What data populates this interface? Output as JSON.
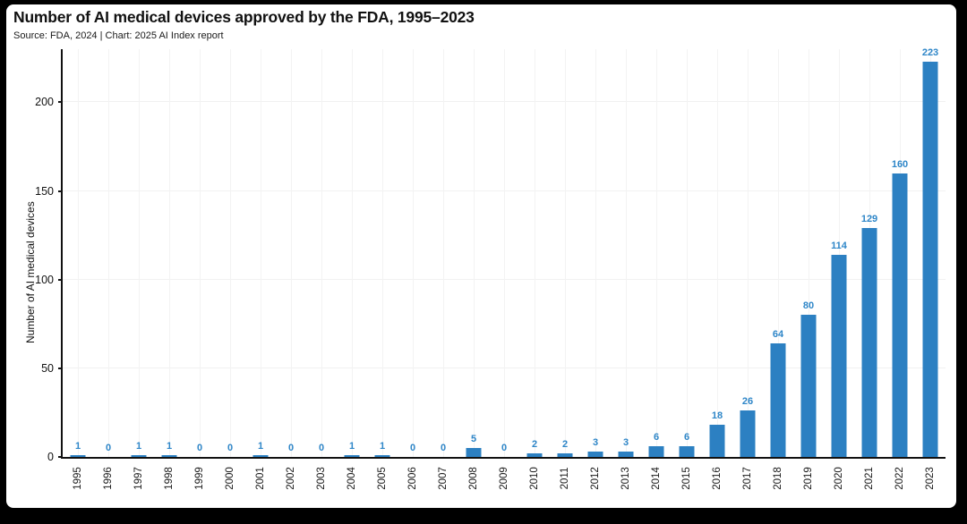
{
  "page": {
    "background_color": "#000000",
    "card_background_color": "#ffffff"
  },
  "header": {
    "title": "Number of AI medical devices approved by the FDA, 1995–2023",
    "subtitle": "Source: FDA, 2024 | Chart: 2025 AI Index report"
  },
  "chart_data": {
    "type": "bar",
    "title": "Number of AI medical devices approved by the FDA, 1995–2023",
    "subtitle": "Source: FDA, 2024 | Chart: 2025 AI Index report",
    "xlabel": "",
    "ylabel": "Number of AI medical devices",
    "categories": [
      "1995",
      "1996",
      "1997",
      "1998",
      "1999",
      "2000",
      "2001",
      "2002",
      "2003",
      "2004",
      "2005",
      "2006",
      "2007",
      "2008",
      "2009",
      "2010",
      "2011",
      "2012",
      "2013",
      "2014",
      "2015",
      "2016",
      "2017",
      "2018",
      "2019",
      "2020",
      "2021",
      "2022",
      "2023"
    ],
    "values": [
      1,
      0,
      1,
      1,
      0,
      0,
      1,
      0,
      0,
      1,
      1,
      0,
      0,
      5,
      0,
      2,
      2,
      3,
      3,
      6,
      6,
      18,
      26,
      64,
      80,
      114,
      129,
      160,
      223
    ],
    "value_labels_shown": true,
    "ylim": [
      0,
      231
    ],
    "yticks": [
      0,
      50,
      100,
      150,
      200
    ],
    "grid": true,
    "bar_color": "#2c80c2",
    "value_label_color": "#2e86c8",
    "gridline_color": "#f1f1f1",
    "axis_color": "#111111"
  }
}
